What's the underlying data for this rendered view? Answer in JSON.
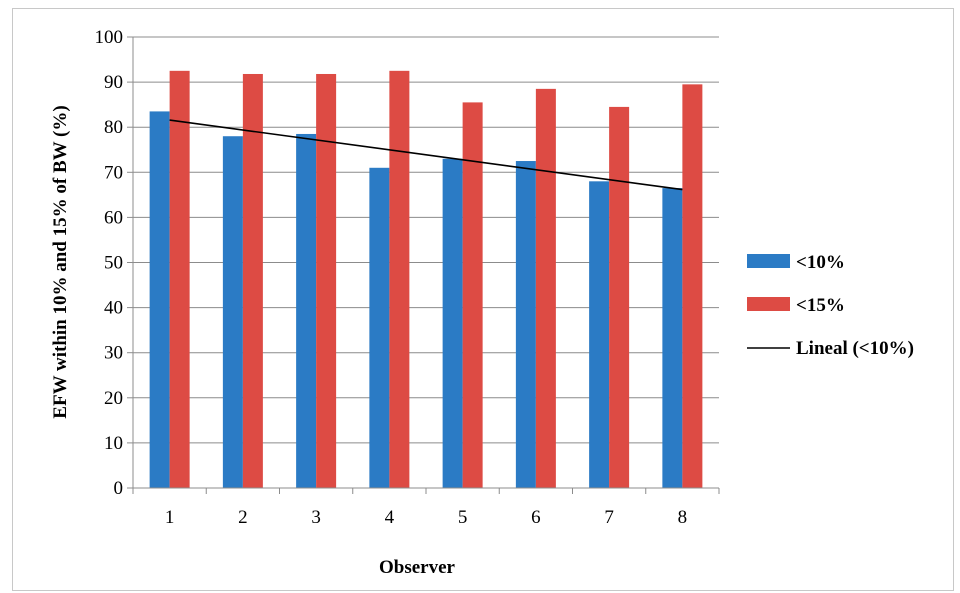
{
  "chart_data": {
    "type": "bar",
    "categories": [
      "1",
      "2",
      "3",
      "4",
      "5",
      "6",
      "7",
      "8"
    ],
    "series": [
      {
        "name": "<10%",
        "values": [
          83.5,
          78,
          78.5,
          71,
          73,
          72.5,
          68,
          66.5
        ],
        "color": "#2b7bc5"
      },
      {
        "name": "<15%",
        "values": [
          92.5,
          91.8,
          91.8,
          92.5,
          85.5,
          88.5,
          84.5,
          89.5
        ],
        "color": "#dd4b44"
      }
    ],
    "trendline": {
      "name": "Lineal (<10%)",
      "type": "linear",
      "of_series": "<10%",
      "color": "#000000"
    },
    "xlabel": "Observer",
    "ylabel": "EFW within 10% and 15% of BW (%)",
    "ylim": [
      0,
      100
    ],
    "yticks": [
      0,
      10,
      20,
      30,
      40,
      50,
      60,
      70,
      80,
      90,
      100
    ],
    "grid": true,
    "legend_position": "right"
  }
}
